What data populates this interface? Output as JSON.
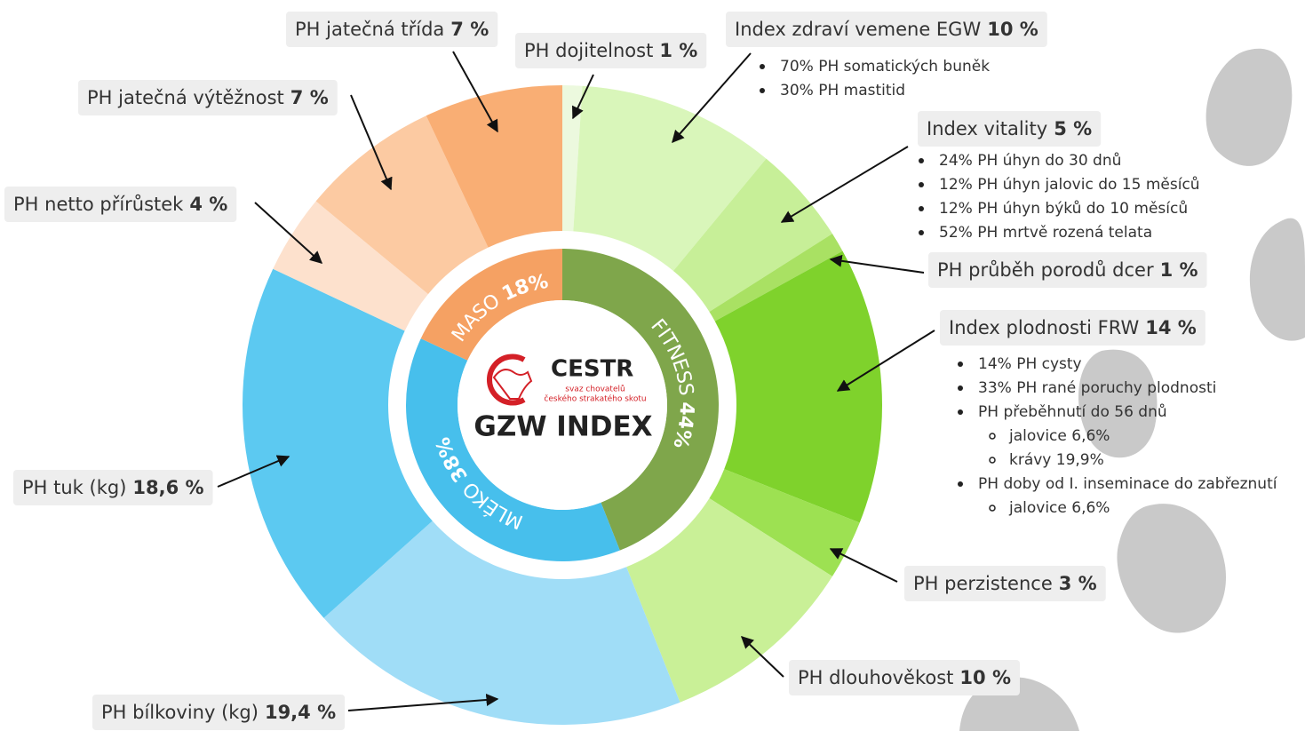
{
  "chart_data": {
    "type": "sunburst",
    "center": {
      "brand": "CESTR",
      "tagline": [
        "svaz chovatelů",
        "českého strakatého skotu"
      ],
      "title": "GZW INDEX"
    },
    "inner": {
      "categories": [
        "FITNESS",
        "MLÉKO",
        "MASO"
      ],
      "values": [
        44,
        38,
        18
      ],
      "value_labels": [
        "44%",
        "38%",
        "18%"
      ],
      "colors": [
        "#7fa64b",
        "#47bfec",
        "#f5a163"
      ]
    },
    "outer": {
      "categories": [
        "PH dojitelnost",
        "Index zdraví vemene EGW",
        "Index vitality",
        "PH průběh porodů dcer",
        "Index plodnosti  FRW",
        "PH perzistence",
        "PH dlouhověkost",
        "PH bílkoviny (kg)",
        "PH tuk (kg)",
        "PH netto přírůstek",
        "PH jatečná výtěžnost",
        "PH jatečná  třída"
      ],
      "values": [
        1,
        10,
        5,
        1,
        14,
        3,
        10,
        19.4,
        18.6,
        4,
        7,
        7
      ],
      "value_labels": [
        "1 %",
        "10 %",
        "5 %",
        "1 %",
        "14 %",
        "3 %",
        "10 %",
        "19,4 %",
        "18,6 %",
        "4 %",
        "7 %",
        "7 %"
      ],
      "colors": [
        "#ecf9de",
        "#d9f6ba",
        "#c7ef98",
        "#a9e163",
        "#7fd22c",
        "#9de152",
        "#c9f097",
        "#a0ddf7",
        "#5cc9f1",
        "#fde1cd",
        "#fccaa2",
        "#f9ae74"
      ]
    },
    "notes": [
      {
        "items": [
          {
            "text": "70%  PH somatických buněk"
          },
          {
            "text": "30% PH mastitid"
          }
        ]
      },
      {
        "items": [
          {
            "text": "24% PH úhyn do 30 dnů"
          },
          {
            "text": "12% PH úhyn jalovic do 15 měsíců"
          },
          {
            "text": "12% PH úhyn býků do 10 měsíců"
          },
          {
            "text": "52% PH mrtvě rozená telata"
          }
        ]
      },
      {
        "items": [
          {
            "text": "14% PH cysty"
          },
          {
            "text": "33% PH rané poruchy plodnosti"
          },
          {
            "text": "PH přeběhnutí do 56 dnů",
            "sub": [
              "jalovice 6,6%",
              "krávy 19,9%"
            ]
          },
          {
            "text": "PH doby od I. inseminace do zabřeznutí",
            "sub": [
              "jalovice 6,6%"
            ]
          }
        ]
      }
    ]
  }
}
